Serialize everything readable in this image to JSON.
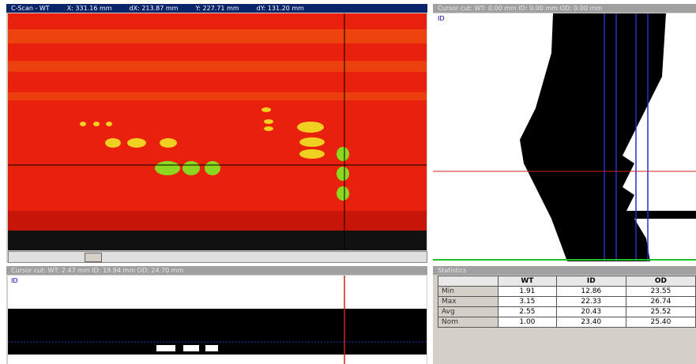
{
  "cscan": {
    "title": "C-Scan - WT",
    "readouts": [
      "X: 331.16 mm",
      "dX: 213.87 mm",
      "Y: 227.71 mm",
      "dY: 131.20 mm"
    ]
  },
  "side_cut": {
    "header": "Cursor cut:  WT: 0.00 mm   ID: 0.00 mm   OD: 0.00 mm",
    "label": "ID"
  },
  "bottom_cut": {
    "header": "Cursor cut:  WT: 2.47 mm   ID: 19.94 mm   OD: 24.70 mm",
    "label": "ID"
  },
  "statistics": {
    "title": "Statistics",
    "columns": [
      "WT",
      "ID",
      "OD"
    ],
    "rows": [
      [
        "Min",
        "1.91",
        "12.86",
        "23.55"
      ],
      [
        "Max",
        "3.15",
        "22.33",
        "26.74"
      ],
      [
        "Avg",
        "2.55",
        "20.43",
        "25.52"
      ],
      [
        "Nom",
        "1.00",
        "23.40",
        "25.40"
      ]
    ]
  }
}
